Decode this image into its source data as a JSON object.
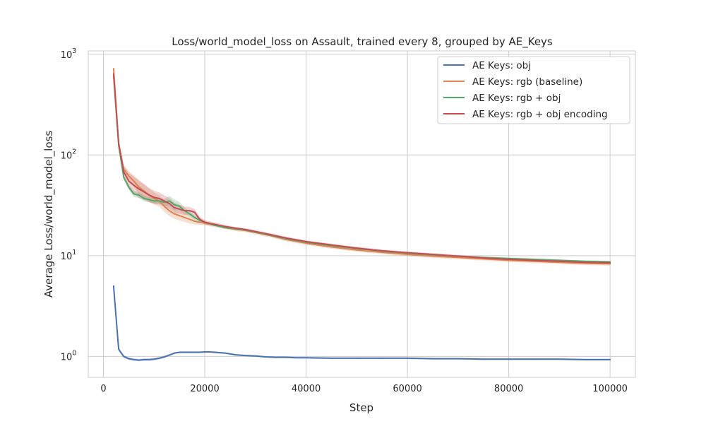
{
  "chart_data": {
    "type": "line",
    "title": "Loss/world_model_loss on Assault, trained every 8, grouped by AE_Keys",
    "xlabel": "Step",
    "ylabel": "Average Loss/world_model_loss",
    "xlim": [
      -3000,
      105000
    ],
    "ylim": [
      0.62,
      1080
    ],
    "yscale": "log",
    "grid": true,
    "legend_position": "top-right",
    "x_ticks": [
      {
        "value": 0,
        "label": "0"
      },
      {
        "value": 20000,
        "label": "20000"
      },
      {
        "value": 40000,
        "label": "40000"
      },
      {
        "value": 60000,
        "label": "60000"
      },
      {
        "value": 80000,
        "label": "80000"
      },
      {
        "value": 100000,
        "label": "100000"
      }
    ],
    "y_ticks": [
      {
        "value": 1,
        "base": "10",
        "exp": "0"
      },
      {
        "value": 10,
        "base": "10",
        "exp": "1"
      },
      {
        "value": 100,
        "base": "10",
        "exp": "2"
      },
      {
        "value": 1000,
        "base": "10",
        "exp": "3"
      }
    ],
    "series": [
      {
        "name": "AE Keys: obj",
        "color": "#4c72b0",
        "x": [
          2000,
          3000,
          4000,
          5000,
          6000,
          7000,
          8000,
          9000,
          10000,
          11000,
          12000,
          13000,
          14000,
          15000,
          16000,
          17000,
          18000,
          19000,
          20000,
          21000,
          22000,
          23000,
          24000,
          25000,
          26000,
          27000,
          28000,
          30000,
          32000,
          34000,
          36000,
          38000,
          40000,
          45000,
          50000,
          55000,
          60000,
          65000,
          70000,
          75000,
          80000,
          85000,
          90000,
          95000,
          100000
        ],
        "y": [
          5.0,
          1.18,
          1.0,
          0.95,
          0.93,
          0.92,
          0.93,
          0.93,
          0.94,
          0.96,
          0.99,
          1.03,
          1.08,
          1.1,
          1.1,
          1.1,
          1.1,
          1.1,
          1.11,
          1.11,
          1.1,
          1.09,
          1.08,
          1.06,
          1.04,
          1.03,
          1.02,
          1.01,
          0.99,
          0.98,
          0.98,
          0.97,
          0.97,
          0.96,
          0.96,
          0.96,
          0.96,
          0.95,
          0.95,
          0.94,
          0.94,
          0.94,
          0.94,
          0.93,
          0.93
        ],
        "band": [
          0.06,
          0.04,
          0.03,
          0.03,
          0.03,
          0.03,
          0.03,
          0.03,
          0.03,
          0.03,
          0.03,
          0.02,
          0.02,
          0.02,
          0.02,
          0.02,
          0.02,
          0.02,
          0.02,
          0.02,
          0.02,
          0.02,
          0.02,
          0.02,
          0.02,
          0.02,
          0.02,
          0.02,
          0.02,
          0.02,
          0.02,
          0.02,
          0.02,
          0.02,
          0.02,
          0.02,
          0.02,
          0.02,
          0.02,
          0.02,
          0.02,
          0.02,
          0.02,
          0.02,
          0.02
        ]
      },
      {
        "name": "AE Keys: rgb (baseline)",
        "color": "#dd8452",
        "x": [
          2000,
          3000,
          4000,
          5000,
          6000,
          7000,
          8000,
          9000,
          10000,
          11000,
          12000,
          13000,
          14000,
          15000,
          16000,
          17000,
          18000,
          19000,
          20000,
          22000,
          24000,
          26000,
          28000,
          30000,
          33000,
          36000,
          40000,
          45000,
          50000,
          55000,
          60000,
          65000,
          70000,
          75000,
          80000,
          85000,
          90000,
          95000,
          100000
        ],
        "y": [
          720,
          130,
          72,
          62,
          55,
          48,
          44,
          40,
          37,
          35,
          31,
          28,
          26,
          25,
          24,
          23,
          22,
          21.5,
          21,
          20,
          19,
          18.3,
          17.8,
          17,
          15.8,
          14.5,
          13.3,
          12.2,
          11.4,
          10.8,
          10.3,
          9.9,
          9.6,
          9.3,
          9.0,
          8.8,
          8.6,
          8.4,
          8.3
        ],
        "band": [
          0.06,
          0.08,
          0.1,
          0.12,
          0.14,
          0.16,
          0.16,
          0.16,
          0.15,
          0.14,
          0.14,
          0.13,
          0.12,
          0.12,
          0.11,
          0.1,
          0.08,
          0.06,
          0.05,
          0.04,
          0.04,
          0.04,
          0.04,
          0.04,
          0.04,
          0.04,
          0.04,
          0.04,
          0.04,
          0.04,
          0.04,
          0.04,
          0.04,
          0.04,
          0.04,
          0.04,
          0.04,
          0.04,
          0.04
        ]
      },
      {
        "name": "AE Keys: rgb + obj",
        "color": "#55a868",
        "x": [
          2000,
          3000,
          4000,
          5000,
          6000,
          7000,
          8000,
          9000,
          10000,
          11000,
          12000,
          13000,
          14000,
          15000,
          16000,
          17000,
          18000,
          19000,
          20000,
          22000,
          24000,
          26000,
          28000,
          30000,
          33000,
          36000,
          40000,
          45000,
          50000,
          55000,
          60000,
          65000,
          70000,
          75000,
          80000,
          85000,
          90000,
          95000,
          100000
        ],
        "y": [
          620,
          125,
          60,
          48,
          41,
          40,
          37,
          36,
          35,
          35,
          34,
          35,
          32,
          31,
          28,
          26,
          24,
          22.5,
          21.5,
          20,
          19,
          18.5,
          18,
          17.2,
          16,
          14.8,
          13.6,
          12.6,
          11.8,
          11.1,
          10.6,
          10.2,
          9.9,
          9.6,
          9.4,
          9.2,
          9.0,
          8.8,
          8.7
        ],
        "band": [
          0.04,
          0.05,
          0.06,
          0.06,
          0.07,
          0.07,
          0.07,
          0.06,
          0.06,
          0.06,
          0.08,
          0.12,
          0.13,
          0.1,
          0.08,
          0.06,
          0.05,
          0.04,
          0.03,
          0.02,
          0.02,
          0.02,
          0.02,
          0.02,
          0.02,
          0.02,
          0.02,
          0.02,
          0.02,
          0.02,
          0.02,
          0.02,
          0.02,
          0.02,
          0.02,
          0.02,
          0.02,
          0.02,
          0.02
        ]
      },
      {
        "name": "AE Keys: rgb + obj encoding",
        "color": "#c44e52",
        "x": [
          2000,
          3000,
          4000,
          5000,
          6000,
          7000,
          8000,
          9000,
          10000,
          11000,
          12000,
          13000,
          14000,
          15000,
          16000,
          17000,
          18000,
          19000,
          20000,
          22000,
          24000,
          26000,
          28000,
          30000,
          33000,
          36000,
          40000,
          45000,
          50000,
          55000,
          60000,
          65000,
          70000,
          75000,
          80000,
          85000,
          90000,
          95000,
          100000
        ],
        "y": [
          640,
          130,
          68,
          55,
          50,
          46,
          43,
          40,
          38,
          37,
          35,
          33,
          30,
          29,
          28,
          28,
          27,
          23,
          21.5,
          20.5,
          19.5,
          18.8,
          18.2,
          17.4,
          16.2,
          15,
          13.8,
          12.8,
          11.9,
          11.2,
          10.7,
          10.3,
          9.9,
          9.5,
          9.2,
          9.0,
          8.8,
          8.6,
          8.5
        ],
        "band": [
          0.06,
          0.1,
          0.16,
          0.2,
          0.22,
          0.22,
          0.2,
          0.18,
          0.16,
          0.15,
          0.14,
          0.13,
          0.12,
          0.11,
          0.1,
          0.09,
          0.08,
          0.06,
          0.05,
          0.04,
          0.04,
          0.03,
          0.03,
          0.03,
          0.03,
          0.03,
          0.03,
          0.03,
          0.03,
          0.03,
          0.03,
          0.03,
          0.03,
          0.03,
          0.03,
          0.03,
          0.03,
          0.03,
          0.03
        ]
      }
    ]
  }
}
